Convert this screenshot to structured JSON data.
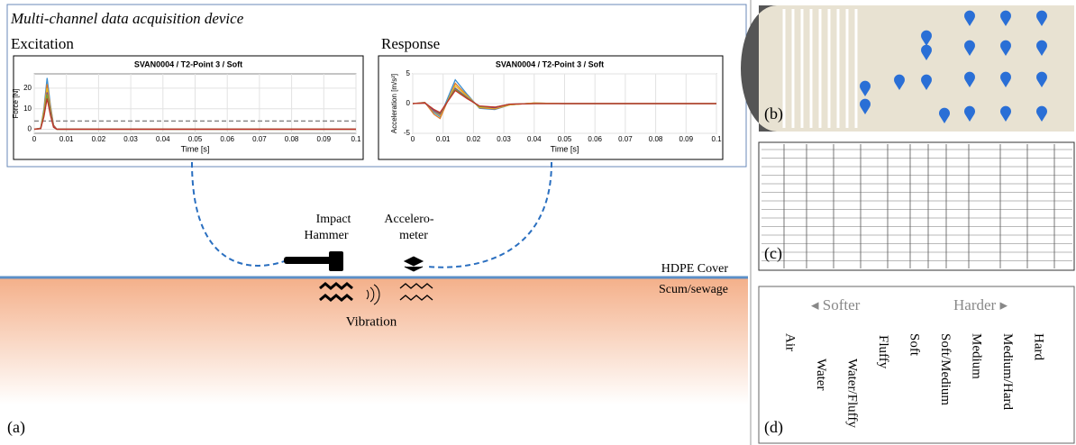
{
  "panel_a": {
    "device_title": "Multi-channel data acquisition device",
    "label": "(a)",
    "excitation": {
      "heading": "Excitation",
      "chart": {
        "type": "line",
        "title": "SVAN0004 / T2-Point 3 / Soft",
        "x_label": "Time [s]",
        "y_label": "Force [N]",
        "xlim": [
          0,
          0.1
        ],
        "xticks": [
          0,
          0.01,
          0.02,
          0.03,
          0.04,
          0.05,
          0.06,
          0.07,
          0.08,
          0.09,
          0.1
        ],
        "ylim": [
          -2,
          27
        ],
        "yticks": [
          0,
          10,
          20
        ],
        "grid": true,
        "reference_line": 4,
        "x": [
          0,
          0.002,
          0.003,
          0.004,
          0.005,
          0.006,
          0.007,
          0.01,
          0.1
        ],
        "series": [
          {
            "color": "#3a8fd0",
            "values": [
              0,
              0.5,
              10,
              25,
              12,
              2,
              0,
              0,
              0
            ]
          },
          {
            "color": "#e07b28",
            "values": [
              0,
              0.4,
              9,
              22,
              11,
              2,
              0,
              0,
              0
            ]
          },
          {
            "color": "#e8c020",
            "values": [
              0,
              0.4,
              8,
              20,
              10,
              1.5,
              0,
              0,
              0
            ]
          },
          {
            "color": "#7a3f9a",
            "values": [
              0,
              0.3,
              7,
              18,
              9,
              1.5,
              0,
              0,
              0
            ]
          },
          {
            "color": "#77ac30",
            "values": [
              0,
              0.3,
              7,
              17,
              8,
              1,
              0,
              0,
              0
            ]
          },
          {
            "color": "#c0302a",
            "values": [
              0,
              0.3,
              6,
              15,
              7,
              1,
              0,
              0,
              0
            ]
          }
        ]
      }
    },
    "response": {
      "heading": "Response",
      "chart": {
        "type": "line",
        "title": "SVAN0004 / T2-Point 3 / Soft",
        "x_label": "Time [s]",
        "y_label": "Acceleration [m/s²]",
        "xlim": [
          0,
          0.1
        ],
        "xticks": [
          0,
          0.01,
          0.02,
          0.03,
          0.04,
          0.05,
          0.06,
          0.07,
          0.08,
          0.09,
          0.1
        ],
        "ylim": [
          -5,
          5
        ],
        "yticks": [
          -5,
          0,
          5
        ],
        "grid": true,
        "x": [
          0,
          0.004,
          0.007,
          0.009,
          0.014,
          0.018,
          0.022,
          0.027,
          0.032,
          0.04,
          0.05,
          0.1
        ],
        "series": [
          {
            "color": "#3a8fd0",
            "values": [
              0,
              0.2,
              -1.5,
              -2.2,
              4,
              1.5,
              -0.8,
              -1,
              -0.2,
              0.1,
              0,
              0
            ]
          },
          {
            "color": "#e07b28",
            "values": [
              0,
              0.2,
              -1.8,
              -2.5,
              3.4,
              1.3,
              -0.7,
              -0.9,
              -0.2,
              0.1,
              0,
              0
            ]
          },
          {
            "color": "#e8c020",
            "values": [
              0,
              0.1,
              -1.3,
              -2,
              3,
              1.2,
              -0.6,
              -0.8,
              -0.2,
              0.1,
              0,
              0
            ]
          },
          {
            "color": "#7a3f9a",
            "values": [
              0,
              0.1,
              -1.2,
              -1.8,
              2.6,
              1,
              -0.5,
              -0.7,
              -0.1,
              0,
              0,
              0
            ]
          },
          {
            "color": "#77ac30",
            "values": [
              0,
              0.1,
              -1,
              -1.6,
              2.4,
              0.9,
              -0.5,
              -0.6,
              -0.1,
              0,
              0,
              0
            ]
          },
          {
            "color": "#c0302a",
            "values": [
              0,
              0.1,
              -1,
              -1.5,
              2.2,
              0.8,
              -0.4,
              -0.6,
              -0.1,
              0,
              0,
              0
            ]
          }
        ]
      }
    },
    "hammer": [
      "Impact",
      "Hammer"
    ],
    "accelerometer": [
      "Accelero-",
      "meter"
    ],
    "cover": "HDPE Cover",
    "medium": "Scum/sewage",
    "vibration": "Vibration"
  },
  "panel_b": {
    "label": "(b)"
  },
  "panel_c": {
    "label": "(c)"
  },
  "panel_d": {
    "label": "(d)",
    "softer": "◂ Softer",
    "harder": "Harder ▸",
    "classes": [
      "Air",
      "Water",
      "Water/Fluffy",
      "Fluffy",
      "Soft",
      "Soft/Medium",
      "Medium",
      "Medium/Hard",
      "Hard"
    ]
  }
}
